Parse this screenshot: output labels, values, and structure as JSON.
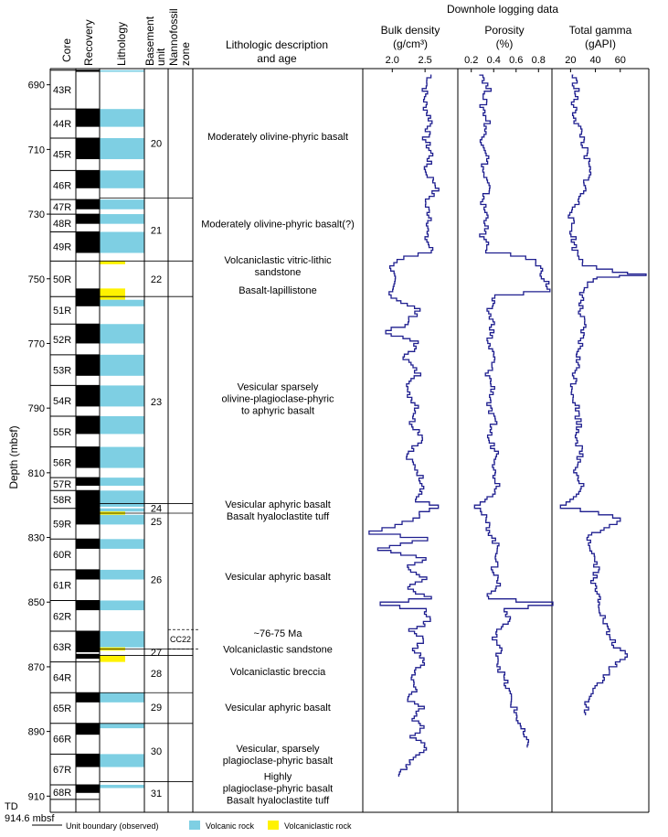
{
  "title": "Downhole logging data",
  "headers": {
    "core": "Core",
    "recovery": "Recovery",
    "lithology": "Lithology",
    "basement_unit": [
      "Basement",
      "unit"
    ],
    "nannofossil_zone": [
      "Nannofossil",
      "zone"
    ],
    "description": [
      "Lithologic description",
      "and age"
    ]
  },
  "depth_axis": {
    "label": "Depth (mbsf)",
    "ticks": [
      690,
      710,
      730,
      750,
      770,
      790,
      810,
      830,
      850,
      870,
      890,
      910
    ],
    "td_label": [
      "TD",
      "914.6 mbsf"
    ]
  },
  "logs": [
    {
      "name": "bulk_density",
      "title": "Bulk density",
      "unit": "(g/cm³)",
      "ticks": [
        "2.0",
        "2.5"
      ],
      "tick_values": [
        2.0,
        2.5
      ],
      "range": [
        1.55,
        3.0
      ],
      "color": "#1f1f8f"
    },
    {
      "name": "porosity",
      "title": "Porosity",
      "unit": "(%)",
      "ticks": [
        "0.2",
        "0.4",
        "0.6",
        "0.8"
      ],
      "tick_values": [
        0.2,
        0.4,
        0.6,
        0.8
      ],
      "range": [
        0.08,
        0.92
      ],
      "color": "#1f1f8f"
    },
    {
      "name": "total_gamma",
      "title": "Total gamma",
      "unit": "(gAPI)",
      "ticks": [
        "20",
        "40",
        "60"
      ],
      "tick_values": [
        20,
        40,
        60
      ],
      "range": [
        5,
        83
      ],
      "color": "#1f1f8f"
    }
  ],
  "cores": [
    "43R",
    "44R",
    "45R",
    "46R",
    "47R",
    "48R",
    "49R",
    "50R",
    "51R",
    "52R",
    "53R",
    "54R",
    "55R",
    "56R",
    "57R",
    "58R",
    "59R",
    "60R",
    "61R",
    "62R",
    "63R",
    "64R",
    "65R",
    "66R",
    "67R",
    "68R"
  ],
  "core_tops": [
    685.5,
    697.5,
    706.5,
    716.5,
    725.5,
    730.0,
    735.5,
    744.5,
    755.5,
    764.0,
    773.5,
    783.0,
    792.5,
    802.0,
    811.5,
    815.5,
    821.0,
    830.5,
    840.0,
    849.5,
    859.0,
    868.5,
    878.0,
    887.5,
    897.0,
    906.5,
    911.0
  ],
  "recovery_blocks": [
    [
      685.5,
      686.0
    ],
    [
      697.5,
      703.0
    ],
    [
      706.5,
      713.0
    ],
    [
      716.5,
      722.0
    ],
    [
      725.5,
      728.5
    ],
    [
      730.0,
      733.0
    ],
    [
      735.5,
      742.0
    ],
    [
      753.0,
      758.5
    ],
    [
      764.0,
      770.0
    ],
    [
      773.5,
      780.0
    ],
    [
      783.0,
      789.5
    ],
    [
      792.5,
      798.0
    ],
    [
      802.0,
      808.5
    ],
    [
      811.5,
      814.0
    ],
    [
      815.5,
      826.0
    ],
    [
      830.5,
      833.5
    ],
    [
      840.0,
      843.0
    ],
    [
      849.5,
      852.5
    ],
    [
      859.0,
      865.5
    ],
    [
      866.0,
      867.5
    ],
    [
      878.0,
      881.0
    ],
    [
      887.5,
      891.0
    ],
    [
      897.0,
      901.0
    ],
    [
      906.5,
      909.0
    ]
  ],
  "lithology_blocks": [
    {
      "type": "volcanic",
      "top": 685.5,
      "bottom": 686.0
    },
    {
      "type": "volcanic",
      "top": 697.5,
      "bottom": 703.0
    },
    {
      "type": "volcanic",
      "top": 706.5,
      "bottom": 713.0
    },
    {
      "type": "volcanic",
      "top": 716.5,
      "bottom": 722.0
    },
    {
      "type": "volcanic",
      "top": 725.5,
      "bottom": 728.5
    },
    {
      "type": "volcanic",
      "top": 730.0,
      "bottom": 733.0
    },
    {
      "type": "volcanic",
      "top": 735.5,
      "bottom": 742.0
    },
    {
      "type": "volcaniclastic",
      "top": 744.5,
      "bottom": 745.5
    },
    {
      "type": "volcaniclastic",
      "top": 753.0,
      "bottom": 756.5
    },
    {
      "type": "volcanic",
      "top": 756.5,
      "bottom": 758.5
    },
    {
      "type": "volcanic",
      "top": 764.0,
      "bottom": 770.0
    },
    {
      "type": "volcanic",
      "top": 773.5,
      "bottom": 780.0
    },
    {
      "type": "volcanic",
      "top": 783.0,
      "bottom": 789.5
    },
    {
      "type": "volcanic",
      "top": 792.5,
      "bottom": 798.0
    },
    {
      "type": "volcanic",
      "top": 802.0,
      "bottom": 808.5
    },
    {
      "type": "volcanic",
      "top": 811.5,
      "bottom": 814.0
    },
    {
      "type": "volcanic",
      "top": 815.5,
      "bottom": 820.5
    },
    {
      "type": "volcanic",
      "top": 821.0,
      "bottom": 822.0
    },
    {
      "type": "volcaniclastic",
      "top": 822.0,
      "bottom": 823.0
    },
    {
      "type": "volcanic",
      "top": 823.0,
      "bottom": 826.0
    },
    {
      "type": "volcanic",
      "top": 830.5,
      "bottom": 833.5
    },
    {
      "type": "volcanic",
      "top": 840.0,
      "bottom": 843.0
    },
    {
      "type": "volcanic",
      "top": 849.5,
      "bottom": 852.5
    },
    {
      "type": "volcanic",
      "top": 859.0,
      "bottom": 864.0
    },
    {
      "type": "volcaniclastic",
      "top": 864.0,
      "bottom": 865.0
    },
    {
      "type": "volcaniclastic",
      "top": 866.5,
      "bottom": 868.5
    },
    {
      "type": "volcanic",
      "top": 878.0,
      "bottom": 881.0
    },
    {
      "type": "volcanic",
      "top": 887.5,
      "bottom": 889.0
    },
    {
      "type": "volcanic",
      "top": 897.0,
      "bottom": 901.0
    },
    {
      "type": "volcanic",
      "top": 906.5,
      "bottom": 907.5
    }
  ],
  "unit_boundaries": [
    725.0,
    744.5,
    755.5,
    819.5,
    822.5,
    864.5,
    866.5,
    878.0,
    887.5,
    905.5
  ],
  "units": [
    {
      "label": "20",
      "depth": 708
    },
    {
      "label": "21",
      "depth": 735
    },
    {
      "label": "22",
      "depth": 750
    },
    {
      "label": "23",
      "depth": 788
    },
    {
      "label": "24",
      "depth": 821
    },
    {
      "label": "25",
      "depth": 825
    },
    {
      "label": "26",
      "depth": 843
    },
    {
      "label": "27",
      "depth": 865.5
    },
    {
      "label": "28",
      "depth": 872
    },
    {
      "label": "29",
      "depth": 882.5
    },
    {
      "label": "30",
      "depth": 896
    },
    {
      "label": "31",
      "depth": 909
    }
  ],
  "nannofossil": {
    "label": "CC22",
    "top": 858.5,
    "bottom": 864.5
  },
  "descriptions": [
    {
      "lines": [
        "Moderately olivine-phyric basalt"
      ],
      "depth": 706
    },
    {
      "lines": [
        "Moderately olivine-phyric basalt(?)"
      ],
      "depth": 733
    },
    {
      "lines": [
        "Volcaniclastic vitric-lithic",
        "sandstone"
      ],
      "depth": 746
    },
    {
      "lines": [
        "Basalt-lapillistone"
      ],
      "depth": 753.5
    },
    {
      "lines": [
        "Vesicular sparsely",
        "olivine-plagioclase-phyric",
        "to aphyric basalt"
      ],
      "depth": 787
    },
    {
      "lines": [
        "Vesicular aphyric basalt",
        "Basalt hyaloclastite tuff"
      ],
      "depth": 821.5
    },
    {
      "lines": [
        "Vesicular aphyric basalt"
      ],
      "depth": 842
    },
    {
      "lines": [
        "~76-75 Ma"
      ],
      "depth": 859.5
    },
    {
      "lines": [
        "Volcaniclastic sandstone"
      ],
      "depth": 864.5
    },
    {
      "lines": [
        "Volcaniclastic breccia"
      ],
      "depth": 871.5
    },
    {
      "lines": [
        "Vesicular aphyric basalt"
      ],
      "depth": 882.5
    },
    {
      "lines": [
        "Vesicular, sparsely",
        "plagioclase-phyric basalt"
      ],
      "depth": 897
    },
    {
      "lines": [
        "Highly",
        "plagioclase-phyric basalt",
        "Basalt hyaloclastite tuff"
      ],
      "depth": 907.5
    }
  ],
  "legend": {
    "unit_boundary": "Unit boundary (observed)",
    "volcanic_rock": "Volcanic rock",
    "volcaniclastic_rock": "Volcaniclastic rock",
    "volcanic_color": "#7ecfe3",
    "volcaniclastic_color": "#fff200"
  },
  "chart_data": {
    "type": "line",
    "y_axis": {
      "label": "Depth (mbsf)",
      "range": [
        685,
        915
      ],
      "inverted": true
    },
    "series": [
      {
        "name": "Bulk density",
        "unit": "g/cm3",
        "depth": [
          687,
          692,
          697,
          702,
          707,
          712,
          717,
          722,
          727,
          732,
          737,
          742,
          744,
          746,
          750,
          754,
          756,
          760,
          765,
          767,
          770,
          775,
          780,
          785,
          790,
          795,
          800,
          805,
          810,
          815,
          819,
          821,
          823,
          825,
          827,
          829,
          831,
          834,
          837,
          840,
          843,
          846,
          849,
          851,
          853,
          856,
          859,
          862,
          865,
          868,
          871,
          874,
          877,
          880,
          883,
          886,
          889,
          892,
          895,
          898,
          901,
          904
        ],
        "values": [
          2.6,
          2.5,
          2.5,
          2.6,
          2.5,
          2.6,
          2.5,
          2.7,
          2.5,
          2.6,
          2.5,
          2.6,
          2.2,
          2.0,
          2.0,
          2.0,
          2.0,
          2.4,
          2.2,
          1.85,
          2.4,
          2.2,
          2.4,
          2.2,
          2.4,
          2.3,
          2.5,
          2.2,
          2.4,
          2.5,
          2.35,
          2.7,
          2.45,
          2.3,
          2.0,
          1.65,
          2.5,
          1.75,
          2.5,
          2.2,
          2.5,
          2.2,
          2.6,
          1.8,
          2.5,
          2.6,
          2.3,
          2.5,
          2.3,
          2.5,
          2.4,
          2.3,
          2.4,
          2.2,
          2.5,
          2.3,
          2.5,
          2.3,
          2.5,
          2.4,
          2.2,
          2.1
        ]
      },
      {
        "name": "Porosity",
        "unit": "%",
        "depth": [
          687,
          692,
          697,
          702,
          707,
          712,
          717,
          722,
          727,
          732,
          737,
          742,
          744,
          746,
          750,
          754,
          756,
          760,
          765,
          770,
          775,
          780,
          785,
          790,
          795,
          800,
          805,
          810,
          815,
          819,
          821,
          823,
          827,
          831,
          835,
          840,
          845,
          849,
          851,
          853,
          856,
          860,
          865,
          870,
          875,
          880,
          885,
          890,
          895
        ],
        "values": [
          0.3,
          0.35,
          0.3,
          0.35,
          0.3,
          0.35,
          0.3,
          0.35,
          0.3,
          0.35,
          0.3,
          0.35,
          0.7,
          0.8,
          0.85,
          0.9,
          0.4,
          0.35,
          0.4,
          0.35,
          0.4,
          0.35,
          0.4,
          0.35,
          0.4,
          0.35,
          0.45,
          0.4,
          0.45,
          0.35,
          0.25,
          0.3,
          0.35,
          0.4,
          0.45,
          0.4,
          0.45,
          0.35,
          0.9,
          0.5,
          0.55,
          0.4,
          0.45,
          0.45,
          0.5,
          0.55,
          0.6,
          0.65,
          0.7
        ]
      },
      {
        "name": "Total gamma",
        "unit": "gAPI",
        "depth": [
          687,
          692,
          697,
          702,
          707,
          712,
          717,
          722,
          727,
          732,
          737,
          742,
          744,
          746,
          748,
          749,
          750,
          752,
          755,
          760,
          765,
          770,
          775,
          780,
          785,
          790,
          795,
          800,
          805,
          810,
          815,
          819,
          821,
          823,
          825,
          827,
          830,
          835,
          840,
          845,
          850,
          855,
          860,
          865,
          867,
          870,
          875,
          880,
          885
        ],
        "values": [
          22,
          25,
          22,
          25,
          30,
          32,
          35,
          32,
          25,
          20,
          22,
          24,
          28,
          30,
          55,
          82,
          40,
          32,
          30,
          27,
          30,
          28,
          26,
          24,
          22,
          25,
          27,
          26,
          28,
          25,
          30,
          20,
          10,
          45,
          60,
          50,
          35,
          38,
          42,
          38,
          44,
          46,
          50,
          58,
          65,
          55,
          45,
          35,
          32
        ]
      }
    ]
  }
}
